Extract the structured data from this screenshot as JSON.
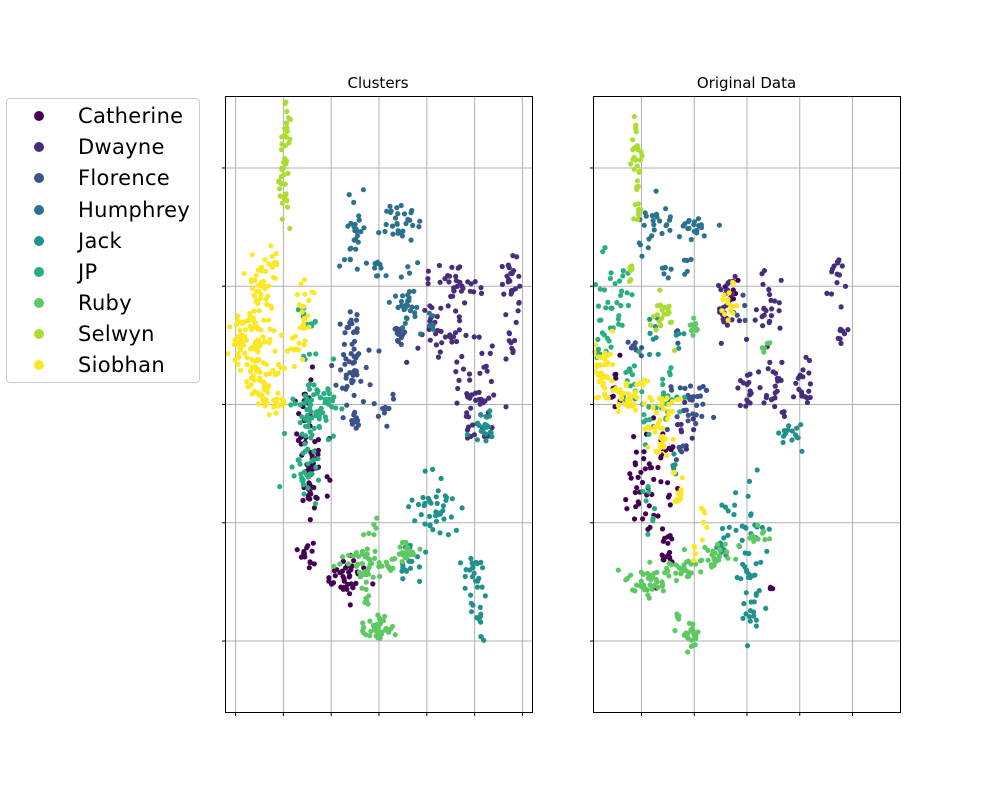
{
  "chart_data": [
    {
      "type": "scatter",
      "title": "Clusters",
      "grid": true,
      "xlim": [
        -0.2,
        6.2
      ],
      "ylim": [
        -0.6,
        4.6
      ],
      "xticks": [
        0,
        1,
        2,
        3,
        4,
        5,
        6
      ],
      "yticks": [
        0,
        1,
        2,
        3,
        4
      ],
      "tick_labels_visible": false,
      "groups": [
        {
          "name": "Catherine",
          "clusters": [
            [
              1.45,
              1.85,
              0.08,
              0.3,
              26
            ],
            [
              1.7,
              1.55,
              0.15,
              0.12,
              22
            ],
            [
              1.55,
              1.28,
              0.08,
              0.12,
              22
            ],
            [
              1.5,
              0.75,
              0.06,
              0.06,
              14
            ],
            [
              2.3,
              0.55,
              0.22,
              0.08,
              40
            ]
          ]
        },
        {
          "name": "Dwayne",
          "clusters": [
            [
              4.55,
              2.95,
              0.3,
              0.12,
              40
            ],
            [
              4.35,
              2.55,
              0.3,
              0.1,
              30
            ],
            [
              5.0,
              2.05,
              0.2,
              0.2,
              50
            ],
            [
              5.75,
              3.0,
              0.1,
              0.18,
              28
            ],
            [
              5.8,
              2.5,
              0.05,
              0.1,
              8
            ]
          ]
        },
        {
          "name": "Florence",
          "clusters": [
            [
              2.45,
              2.3,
              0.15,
              0.18,
              45
            ],
            [
              3.15,
              2.0,
              0.1,
              0.06,
              10
            ],
            [
              2.5,
              1.9,
              0.12,
              0.06,
              10
            ],
            [
              2.4,
              2.7,
              0.1,
              0.05,
              10
            ],
            [
              3.45,
              2.6,
              0.07,
              0.06,
              14
            ]
          ]
        },
        {
          "name": "Humphrey",
          "clusters": [
            [
              2.5,
              3.4,
              0.1,
              0.15,
              30
            ],
            [
              3.5,
              3.55,
              0.3,
              0.08,
              30
            ],
            [
              3.0,
              3.15,
              0.1,
              0.06,
              10
            ],
            [
              3.6,
              2.95,
              0.15,
              0.15,
              30
            ],
            [
              4.1,
              2.72,
              0.05,
              0.05,
              6
            ]
          ]
        },
        {
          "name": "Jack",
          "clusters": [
            [
              4.2,
              1.1,
              0.25,
              0.15,
              40
            ],
            [
              5.2,
              1.8,
              0.12,
              0.06,
              22
            ],
            [
              3.7,
              0.75,
              0.1,
              0.1,
              16
            ],
            [
              4.95,
              0.6,
              0.12,
              0.08,
              16
            ],
            [
              5.1,
              0.25,
              0.1,
              0.15,
              18
            ],
            [
              3.5,
              0.6,
              0.05,
              0.05,
              6
            ]
          ]
        },
        {
          "name": "JP",
          "clusters": [
            [
              1.5,
              1.95,
              0.18,
              0.15,
              40
            ],
            [
              1.45,
              1.45,
              0.15,
              0.12,
              30
            ],
            [
              1.75,
              2.0,
              0.15,
              0.2,
              25
            ],
            [
              1.5,
              2.7,
              0.1,
              0.05,
              10
            ],
            [
              1.9,
              2.05,
              0.1,
              0.06,
              10
            ]
          ]
        },
        {
          "name": "Ruby",
          "clusters": [
            [
              2.9,
              0.65,
              0.3,
              0.05,
              40
            ],
            [
              3.6,
              0.75,
              0.1,
              0.05,
              14
            ],
            [
              2.7,
              0.5,
              0.05,
              0.2,
              18
            ],
            [
              3.0,
              0.1,
              0.15,
              0.06,
              40
            ],
            [
              2.9,
              0.95,
              0.05,
              0.06,
              5
            ]
          ]
        },
        {
          "name": "Selwyn",
          "clusters": [
            [
              1.05,
              4.3,
              0.05,
              0.15,
              25
            ],
            [
              1.0,
              3.8,
              0.06,
              0.15,
              20
            ]
          ]
        },
        {
          "name": "Siobhan",
          "clusters": [
            [
              0.35,
              2.55,
              0.2,
              0.2,
              80
            ],
            [
              0.6,
              2.2,
              0.2,
              0.12,
              40
            ],
            [
              0.5,
              3.0,
              0.1,
              0.1,
              25
            ],
            [
              0.8,
              3.2,
              0.06,
              0.1,
              12
            ],
            [
              1.4,
              2.8,
              0.12,
              0.1,
              18
            ],
            [
              1.3,
              2.5,
              0.1,
              0.06,
              12
            ],
            [
              0.9,
              2.0,
              0.12,
              0.06,
              15
            ],
            [
              0.1,
              2.6,
              0.05,
              0.1,
              15
            ]
          ]
        }
      ]
    },
    {
      "type": "scatter",
      "title": "Original Data",
      "grid": true,
      "xlim": [
        -0.9,
        4.9
      ],
      "ylim": [
        -0.6,
        4.6
      ],
      "xticks": [
        0,
        1,
        2,
        3,
        4
      ],
      "yticks": [
        0,
        1,
        2,
        3,
        4
      ],
      "tick_labels_visible": false,
      "groups": [
        {
          "name": "Catherine",
          "clusters": [
            [
              0.0,
              1.35,
              0.15,
              0.25,
              35
            ],
            [
              0.5,
              1.05,
              0.12,
              0.2,
              15
            ],
            [
              0.4,
              1.6,
              0.1,
              0.1,
              10
            ],
            [
              0.5,
              0.72,
              0.05,
              0.05,
              12
            ],
            [
              -0.5,
              2.2,
              0.1,
              0.15,
              10
            ],
            [
              1.7,
              2.9,
              0.1,
              0.1,
              10
            ],
            [
              2.45,
              0.45,
              0.02,
              0.02,
              3
            ]
          ]
        },
        {
          "name": "Dwayne",
          "clusters": [
            [
              1.6,
              2.85,
              0.1,
              0.15,
              25
            ],
            [
              2.35,
              2.8,
              0.15,
              0.15,
              25
            ],
            [
              2.0,
              2.1,
              0.1,
              0.1,
              15
            ],
            [
              2.55,
              2.15,
              0.15,
              0.12,
              25
            ],
            [
              3.05,
              2.2,
              0.1,
              0.1,
              20
            ],
            [
              3.75,
              3.05,
              0.1,
              0.1,
              15
            ],
            [
              3.8,
              2.55,
              0.05,
              0.05,
              8
            ],
            [
              0.8,
              1.8,
              0.1,
              0.1,
              10
            ]
          ]
        },
        {
          "name": "Florence",
          "clusters": [
            [
              -0.1,
              2.5,
              0.1,
              0.05,
              8
            ],
            [
              0.85,
              2.0,
              0.2,
              0.12,
              25
            ],
            [
              1.15,
              2.1,
              0.05,
              0.05,
              5
            ],
            [
              0.75,
              1.6,
              0.05,
              0.05,
              5
            ],
            [
              0.7,
              2.55,
              0.05,
              0.05,
              3
            ],
            [
              1.9,
              2.8,
              0.05,
              0.05,
              4
            ]
          ]
        },
        {
          "name": "Humphrey",
          "clusters": [
            [
              0.3,
              3.5,
              0.2,
              0.1,
              20
            ],
            [
              1.05,
              3.5,
              0.2,
              0.05,
              20
            ],
            [
              0.9,
              3.15,
              0.05,
              0.05,
              5
            ],
            [
              0.0,
              3.3,
              0.05,
              0.05,
              4
            ],
            [
              0.45,
              3.15,
              0.05,
              0.05,
              5
            ]
          ]
        },
        {
          "name": "Jack",
          "clusters": [
            [
              2.0,
              1.0,
              0.25,
              0.15,
              30
            ],
            [
              2.8,
              1.75,
              0.15,
              0.05,
              15
            ],
            [
              1.5,
              0.75,
              0.05,
              0.06,
              8
            ],
            [
              2.0,
              0.6,
              0.1,
              0.08,
              12
            ],
            [
              2.1,
              0.3,
              0.1,
              0.15,
              20
            ],
            [
              0.2,
              2.6,
              0.1,
              0.1,
              8
            ],
            [
              0.7,
              2.6,
              0.05,
              0.05,
              4
            ],
            [
              0.6,
              1.5,
              0.05,
              0.05,
              5
            ]
          ]
        },
        {
          "name": "JP",
          "clusters": [
            [
              -0.6,
              2.8,
              0.15,
              0.2,
              30
            ],
            [
              -0.2,
              2.2,
              0.1,
              0.1,
              15
            ],
            [
              0.5,
              2.05,
              0.15,
              0.12,
              20
            ],
            [
              0.1,
              1.8,
              0.1,
              0.1,
              10
            ],
            [
              0.2,
              1.2,
              0.1,
              0.1,
              8
            ],
            [
              -0.3,
              3.0,
              0.1,
              0.1,
              8
            ],
            [
              -0.8,
              2.5,
              0.05,
              0.05,
              5
            ]
          ]
        },
        {
          "name": "Ruby",
          "clusters": [
            [
              0.2,
              0.5,
              0.2,
              0.06,
              40
            ],
            [
              0.8,
              0.6,
              0.2,
              0.05,
              25
            ],
            [
              1.4,
              0.75,
              0.2,
              0.05,
              15
            ],
            [
              2.2,
              0.9,
              0.12,
              0.05,
              12
            ],
            [
              0.95,
              0.05,
              0.08,
              0.06,
              25
            ],
            [
              0.65,
              0.2,
              0.05,
              0.05,
              5
            ],
            [
              1.45,
              0.7,
              0.1,
              0.05,
              10
            ],
            [
              1.0,
              2.65,
              0.05,
              0.05,
              12
            ],
            [
              2.3,
              2.5,
              0.05,
              0.05,
              5
            ]
          ]
        },
        {
          "name": "Selwyn",
          "clusters": [
            [
              -0.1,
              4.15,
              0.05,
              0.18,
              25
            ],
            [
              -0.05,
              3.7,
              0.05,
              0.1,
              10
            ],
            [
              0.4,
              2.75,
              0.15,
              0.1,
              22
            ],
            [
              -0.2,
              3.1,
              0.05,
              0.1,
              6
            ]
          ]
        },
        {
          "name": "Siobhan",
          "clusters": [
            [
              -0.8,
              2.3,
              0.15,
              0.12,
              55
            ],
            [
              -0.35,
              2.05,
              0.15,
              0.08,
              30
            ],
            [
              0.35,
              1.7,
              0.15,
              0.15,
              30
            ],
            [
              1.7,
              2.9,
              0.12,
              0.1,
              15
            ],
            [
              0.7,
              1.25,
              0.05,
              0.1,
              12
            ],
            [
              0.5,
              2.0,
              0.1,
              0.05,
              10
            ],
            [
              0.05,
              2.15,
              0.05,
              0.05,
              6
            ],
            [
              1.2,
              1.05,
              0.05,
              0.08,
              6
            ],
            [
              1.0,
              0.75,
              0.02,
              0.05,
              6
            ]
          ]
        }
      ]
    }
  ],
  "legend": {
    "placement": "left of plots",
    "items": [
      {
        "label": "Catherine",
        "color": "#440154"
      },
      {
        "label": "Dwayne",
        "color": "#472d7b"
      },
      {
        "label": "Florence",
        "color": "#3b528b"
      },
      {
        "label": "Humphrey",
        "color": "#2c728e"
      },
      {
        "label": "Jack",
        "color": "#21918c"
      },
      {
        "label": "JP",
        "color": "#28ae80"
      },
      {
        "label": "Ruby",
        "color": "#5ec962"
      },
      {
        "label": "Selwyn",
        "color": "#addc30"
      },
      {
        "label": "Siobhan",
        "color": "#fde725"
      }
    ]
  }
}
